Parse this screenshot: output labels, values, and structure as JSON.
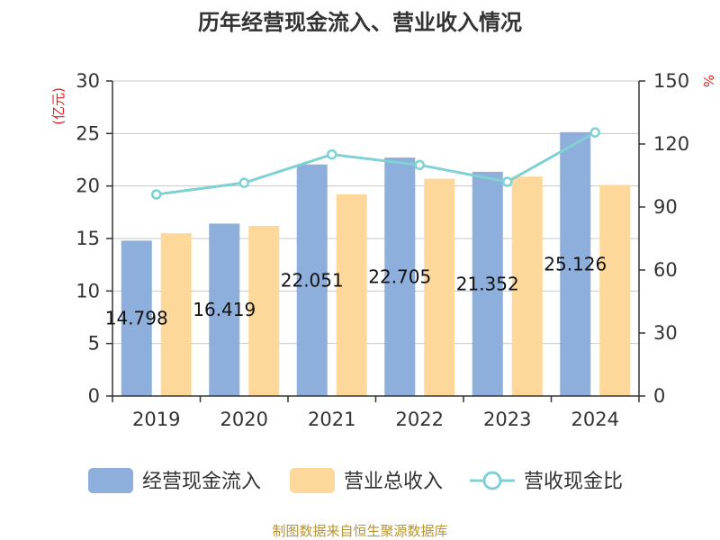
{
  "chart_data": {
    "type": "bar",
    "title": "历年经营现金流入、营业收入情况",
    "categories": [
      "2019",
      "2020",
      "2021",
      "2022",
      "2023",
      "2024"
    ],
    "series": [
      {
        "name": "经营现金流入",
        "type": "bar",
        "axis": "left",
        "color": "#8eaedb",
        "values": [
          14.798,
          16.419,
          22.051,
          22.705,
          21.352,
          25.126
        ],
        "data_labels": [
          "14.798",
          "16.419",
          "22.051",
          "22.705",
          "21.352",
          "25.126"
        ]
      },
      {
        "name": "营业总收入",
        "type": "bar",
        "axis": "left",
        "color": "#fed89b",
        "values": [
          15.5,
          16.2,
          19.2,
          20.7,
          20.9,
          20.1
        ]
      },
      {
        "name": "营收现金比",
        "type": "line",
        "axis": "right",
        "color": "#7fd1d4",
        "values": [
          96,
          101.5,
          115,
          110,
          102,
          125.5
        ]
      }
    ],
    "y_left": {
      "label": "(亿元)",
      "min": 0,
      "max": 30,
      "ticks": [
        0,
        5,
        10,
        15,
        20,
        25,
        30
      ]
    },
    "y_right": {
      "label": "%",
      "min": 0,
      "max": 150,
      "ticks": [
        0,
        30,
        60,
        90,
        120,
        150
      ]
    },
    "grid": true,
    "legend_position": "bottom"
  },
  "source_text": "制图数据来自恒生聚源数据库"
}
